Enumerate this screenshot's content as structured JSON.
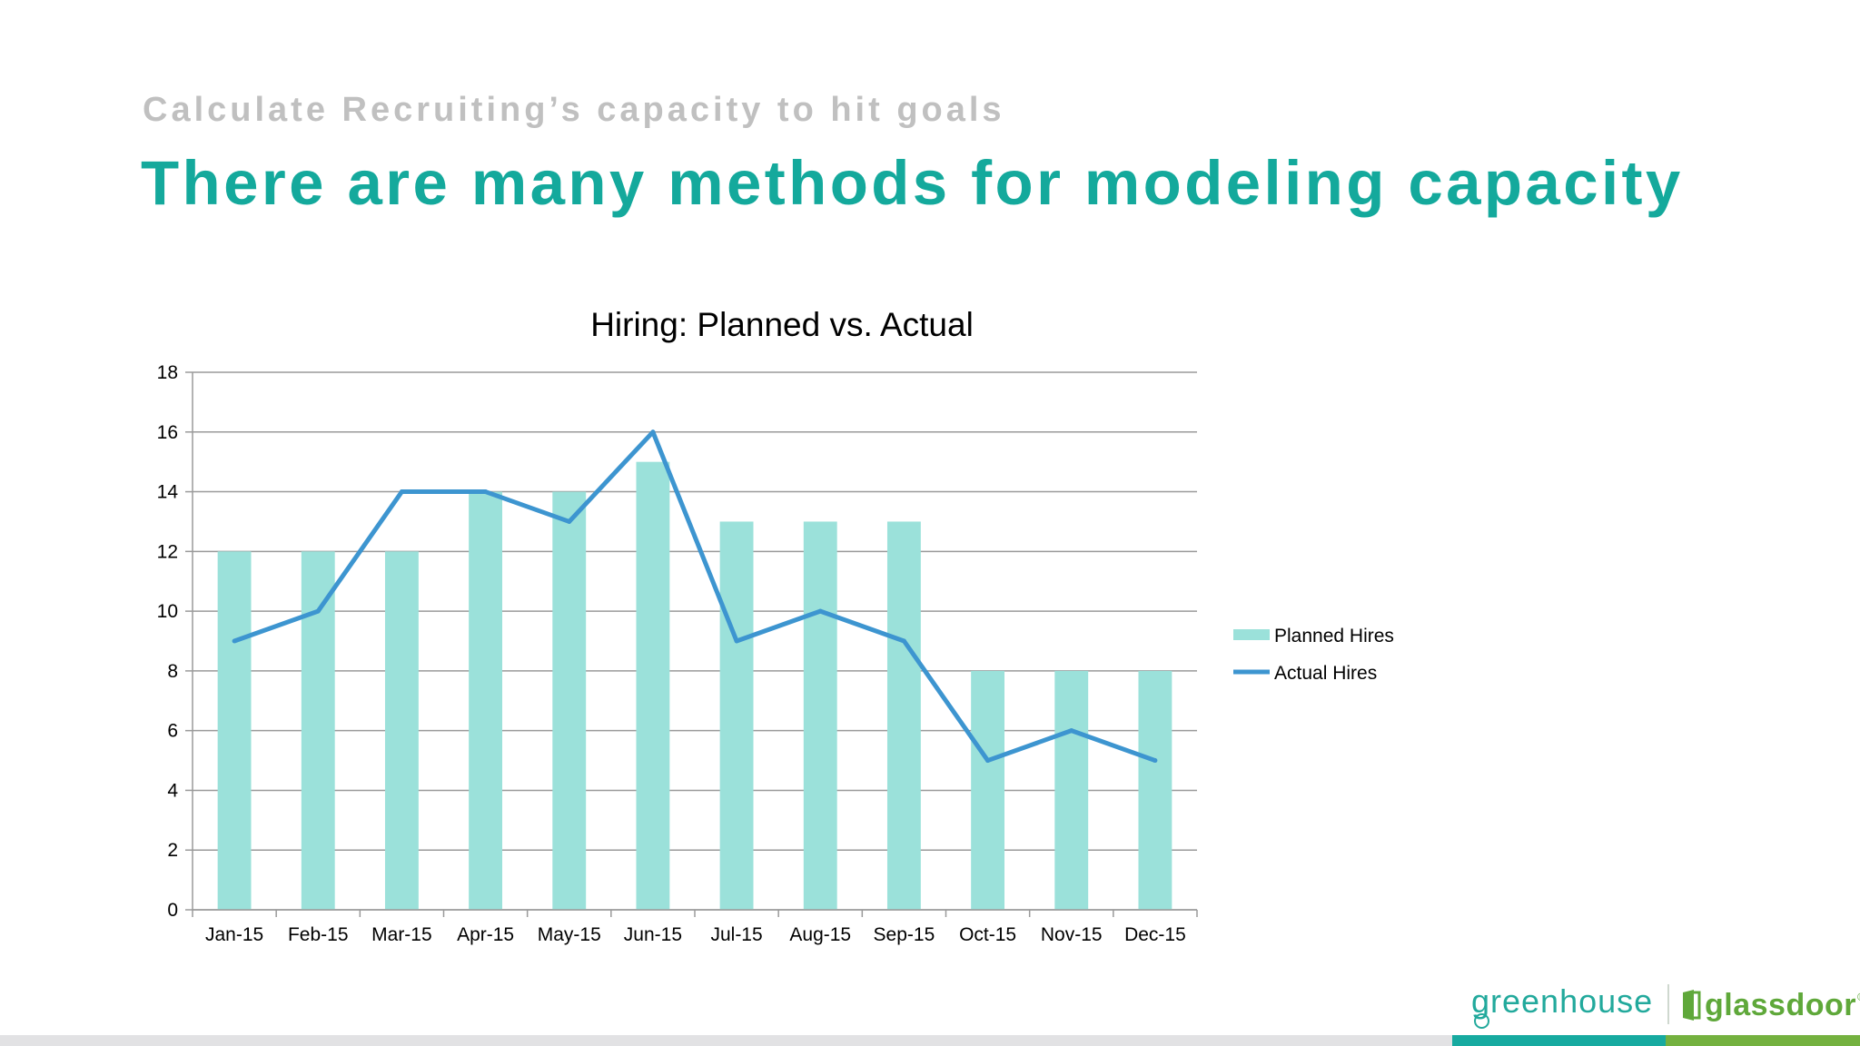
{
  "slide": {
    "subtitle": "Calculate Recruiting’s capacity to hit goals",
    "title": "There are many methods for modeling capacity"
  },
  "footer": {
    "logo_left": "greenhouse",
    "logo_right": "glassdoor",
    "logo_right_mark": "®",
    "colors": {
      "teal": "#17aaa0",
      "green": "#74b13f",
      "gray": "#e2e2e4"
    }
  },
  "chart_data": {
    "type": "bar",
    "title": "Hiring: Planned vs. Actual",
    "categories": [
      "Jan-15",
      "Feb-15",
      "Mar-15",
      "Apr-15",
      "May-15",
      "Jun-15",
      "Jul-15",
      "Aug-15",
      "Sep-15",
      "Oct-15",
      "Nov-15",
      "Dec-15"
    ],
    "series": [
      {
        "name": "Planned Hires",
        "type": "bar",
        "color": "#9be1da",
        "values": [
          12,
          12,
          12,
          14,
          14,
          15,
          13,
          13,
          13,
          8,
          8,
          8
        ]
      },
      {
        "name": "Actual Hires",
        "type": "line",
        "color": "#3d95d0",
        "values": [
          9,
          10,
          14,
          14,
          13,
          16,
          9,
          10,
          9,
          5,
          6,
          5
        ]
      }
    ],
    "ylim": [
      0,
      18
    ],
    "yticks": [
      0,
      2,
      4,
      6,
      8,
      10,
      12,
      14,
      16,
      18
    ],
    "grid": true,
    "legend": "right"
  }
}
